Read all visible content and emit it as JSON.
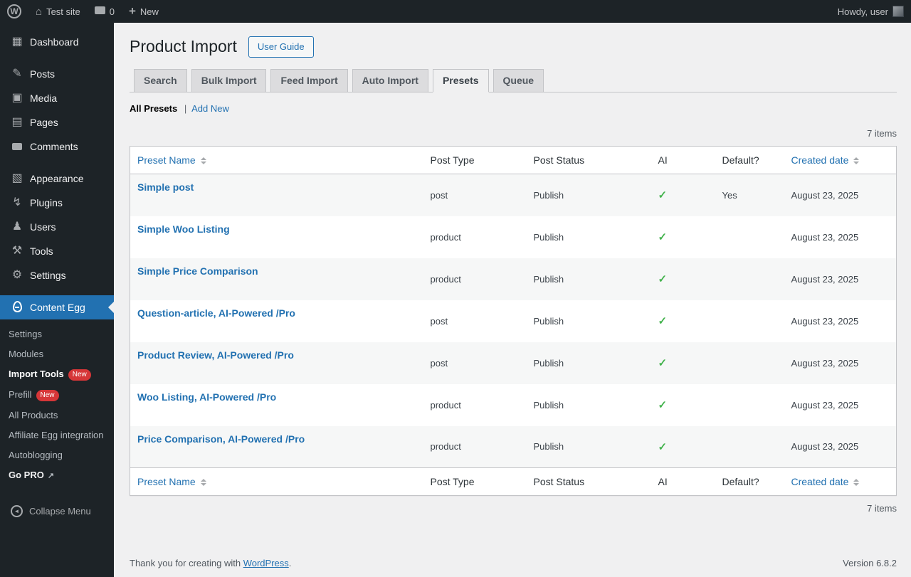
{
  "colors": {
    "accent": "#2271b1",
    "success_check": "#46b450",
    "badge": "#d63638"
  },
  "admin_bar": {
    "site_name": "Test site",
    "comments_count": "0",
    "new_label": "New",
    "howdy_text": "Howdy, user"
  },
  "sidebar": {
    "items": [
      {
        "label": "Dashboard",
        "icon": "dashboard-icon"
      },
      {
        "label": "Posts",
        "icon": "posts-icon"
      },
      {
        "label": "Media",
        "icon": "media-icon"
      },
      {
        "label": "Pages",
        "icon": "pages-icon"
      },
      {
        "label": "Comments",
        "icon": "comments-icon"
      },
      {
        "label": "Appearance",
        "icon": "appearance-icon"
      },
      {
        "label": "Plugins",
        "icon": "plugins-icon"
      },
      {
        "label": "Users",
        "icon": "users-icon"
      },
      {
        "label": "Tools",
        "icon": "tools-icon"
      },
      {
        "label": "Settings",
        "icon": "settings-icon"
      }
    ],
    "content_egg": {
      "label": "Content Egg",
      "icon": "content-egg-icon"
    },
    "submenu": [
      {
        "label": "Settings"
      },
      {
        "label": "Modules"
      },
      {
        "label": "Import Tools",
        "badge": "New",
        "current": true
      },
      {
        "label": "Prefill",
        "badge": "New"
      },
      {
        "label": "All Products"
      },
      {
        "label": "Affiliate Egg integration"
      },
      {
        "label": "Autoblogging"
      },
      {
        "label": "Go PRO",
        "external": true
      }
    ],
    "collapse_label": "Collapse Menu"
  },
  "page": {
    "title": "Product Import",
    "user_guide_button": "User Guide",
    "tabs": [
      {
        "label": "Search"
      },
      {
        "label": "Bulk Import"
      },
      {
        "label": "Feed Import"
      },
      {
        "label": "Auto Import"
      },
      {
        "label": "Presets",
        "active": true
      },
      {
        "label": "Queue"
      }
    ],
    "filter_all": "All Presets",
    "filter_sep": "|",
    "filter_add_new": "Add New",
    "items_count": "7 items",
    "table": {
      "columns": [
        {
          "label": "Preset Name",
          "sortable": true
        },
        {
          "label": "Post Type"
        },
        {
          "label": "Post Status"
        },
        {
          "label": "AI"
        },
        {
          "label": "Default?"
        },
        {
          "label": "Created date",
          "sortable": true
        }
      ],
      "rows": [
        {
          "name": "Simple post",
          "post_type": "post",
          "post_status": "Publish",
          "ai": "✓",
          "is_default": "Yes",
          "created_date": "August 23, 2025"
        },
        {
          "name": "Simple Woo Listing",
          "post_type": "product",
          "post_status": "Publish",
          "ai": "✓",
          "is_default": "",
          "created_date": "August 23, 2025"
        },
        {
          "name": "Simple Price Comparison",
          "post_type": "product",
          "post_status": "Publish",
          "ai": "✓",
          "is_default": "",
          "created_date": "August 23, 2025"
        },
        {
          "name": "Question-article, AI-Powered /Pro",
          "post_type": "post",
          "post_status": "Publish",
          "ai": "✓",
          "is_default": "",
          "created_date": "August 23, 2025"
        },
        {
          "name": "Product Review, AI-Powered /Pro",
          "post_type": "post",
          "post_status": "Publish",
          "ai": "✓",
          "is_default": "",
          "created_date": "August 23, 2025"
        },
        {
          "name": "Woo Listing, AI-Powered /Pro",
          "post_type": "product",
          "post_status": "Publish",
          "ai": "✓",
          "is_default": "",
          "created_date": "August 23, 2025"
        },
        {
          "name": "Price Comparison, AI-Powered /Pro",
          "post_type": "product",
          "post_status": "Publish",
          "ai": "✓",
          "is_default": "",
          "created_date": "August 23, 2025"
        }
      ]
    },
    "footer": {
      "thanks_prefix": "Thank you for creating with ",
      "wordpress_link": "WordPress",
      "thanks_suffix": ".",
      "version": "Version 6.8.2"
    }
  }
}
